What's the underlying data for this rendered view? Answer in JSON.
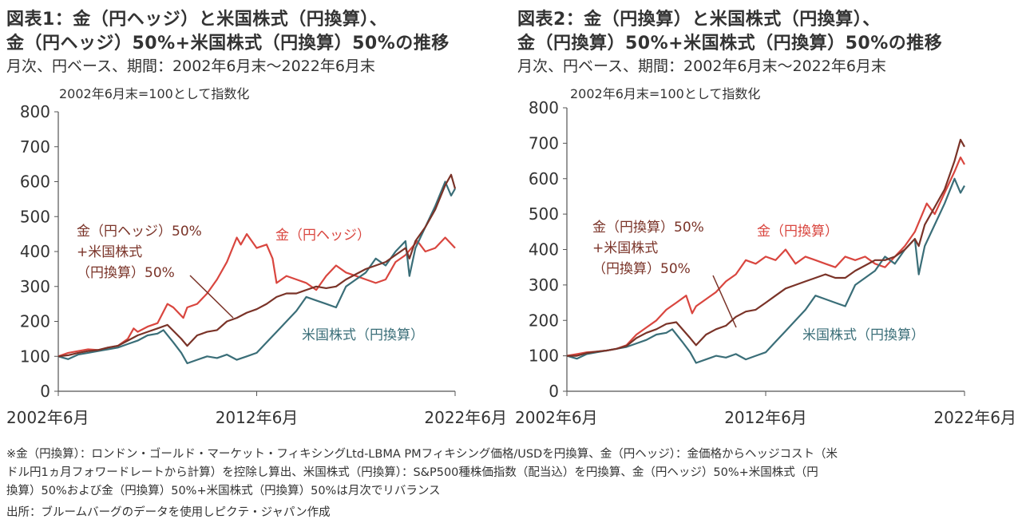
{
  "colors": {
    "gold": "#d9463f",
    "us_stock": "#3a6e78",
    "mix": "#7a3328",
    "axis": "#555555",
    "text": "#333333"
  },
  "panels": [
    {
      "title_line1": "図表1：金（円ヘッジ）と米国株式（円換算）、",
      "title_line2": "金（円ヘッジ）50%+米国株式（円換算）50%の推移",
      "subtitle": "月次、円ベース、期間：2002年6月末～2022年6月末",
      "index_note": "2002年6月末=100として指数化",
      "labels": {
        "gold": "金（円ヘッジ）",
        "us": "米国株式（円換算）",
        "mix1": "金（円ヘッジ）50%",
        "mix2": "+米国株式",
        "mix3": "（円換算）50%"
      }
    },
    {
      "title_line1": "図表2：金（円換算）と米国株式（円換算）、",
      "title_line2": "金（円換算）50%+米国株式（円換算）50%の推移",
      "subtitle": "月次、円ベース、期間：2002年6月末～2022年6月末",
      "index_note": "2002年6月末=100として指数化",
      "labels": {
        "gold": "金（円換算）",
        "us": "米国株式（円換算）",
        "mix1": "金（円換算）50%",
        "mix2": "+米国株式",
        "mix3": "（円換算）50%"
      }
    }
  ],
  "footnote": {
    "line1": "※金（円換算）：ロンドン・ゴールド・マーケット・フィキシングLtd-LBMA PMフィキシング価格/USDを円換算、金（円ヘッジ）：金価格からヘッジコスト（米",
    "line2": "ドル円1ヵ月フォワードレートから計算）を控除し算出、米国株式（円換算）：S&P500種株価指数（配当込）を円換算、金（円ヘッジ）50%+米国株式（円",
    "line3": "換算）50%および金（円換算）50%+米国株式（円換算）50%は月次でリバランス",
    "line4": "出所：ブルームバーグのデータを使用しピクテ・ジャパン作成"
  },
  "chart_data": [
    {
      "type": "line",
      "ylim": [
        0,
        800
      ],
      "yticks": [
        "0",
        "100",
        "200",
        "300",
        "400",
        "500",
        "600",
        "700",
        "800"
      ],
      "xticks": [
        "2002年6月",
        "2012年6月",
        "2022年6月"
      ],
      "xlim": [
        2002.5,
        2022.5
      ],
      "series": [
        {
          "name": "金（円ヘッジ）",
          "color": "gold",
          "x": [
            2002.5,
            2003.0,
            2003.5,
            2004.0,
            2004.5,
            2005.0,
            2005.5,
            2006.0,
            2006.3,
            2006.5,
            2007.0,
            2007.5,
            2008.0,
            2008.3,
            2008.8,
            2009.0,
            2009.5,
            2010.0,
            2010.5,
            2011.0,
            2011.5,
            2011.7,
            2012.0,
            2012.5,
            2013.0,
            2013.3,
            2013.5,
            2014.0,
            2014.5,
            2015.0,
            2015.5,
            2016.0,
            2016.5,
            2017.0,
            2017.5,
            2018.0,
            2018.5,
            2019.0,
            2019.5,
            2020.0,
            2020.6,
            2021.0,
            2021.5,
            2022.0,
            2022.5
          ],
          "y": [
            100,
            110,
            115,
            120,
            118,
            125,
            130,
            150,
            180,
            170,
            185,
            195,
            250,
            240,
            210,
            240,
            250,
            280,
            320,
            370,
            440,
            420,
            450,
            410,
            420,
            380,
            310,
            330,
            320,
            310,
            290,
            330,
            360,
            340,
            330,
            320,
            310,
            320,
            370,
            390,
            430,
            400,
            410,
            440,
            410
          ]
        },
        {
          "name": "米国株式（円換算）",
          "color": "us_stock",
          "x": [
            2002.5,
            2003.0,
            2003.5,
            2004.0,
            2004.5,
            2005.0,
            2005.5,
            2006.0,
            2006.5,
            2007.0,
            2007.5,
            2007.8,
            2008.3,
            2008.7,
            2009.0,
            2009.5,
            2010.0,
            2010.5,
            2011.0,
            2011.5,
            2012.0,
            2012.5,
            2013.0,
            2013.5,
            2014.0,
            2014.5,
            2015.0,
            2015.5,
            2016.0,
            2016.5,
            2017.0,
            2017.5,
            2018.0,
            2018.5,
            2019.0,
            2019.5,
            2020.0,
            2020.2,
            2020.5,
            2021.0,
            2021.5,
            2022.0,
            2022.3,
            2022.5
          ],
          "y": [
            100,
            92,
            105,
            110,
            115,
            120,
            125,
            135,
            145,
            160,
            165,
            175,
            140,
            110,
            80,
            90,
            100,
            95,
            105,
            90,
            100,
            110,
            140,
            170,
            200,
            230,
            270,
            260,
            250,
            240,
            300,
            320,
            340,
            380,
            360,
            400,
            430,
            330,
            410,
            470,
            530,
            600,
            560,
            580
          ]
        },
        {
          "name": "金（円ヘッジ）50%+米国株式（円換算）50%",
          "color": "mix",
          "x": [
            2002.5,
            2003.0,
            2003.5,
            2004.0,
            2004.5,
            2005.0,
            2005.5,
            2006.0,
            2006.5,
            2007.0,
            2007.5,
            2008.0,
            2008.7,
            2009.0,
            2009.5,
            2010.0,
            2010.5,
            2011.0,
            2011.5,
            2012.0,
            2012.5,
            2013.0,
            2013.5,
            2014.0,
            2014.5,
            2015.0,
            2015.5,
            2016.0,
            2016.5,
            2017.0,
            2017.5,
            2018.0,
            2018.5,
            2019.0,
            2019.5,
            2020.0,
            2020.2,
            2020.5,
            2021.0,
            2021.5,
            2022.0,
            2022.3,
            2022.5
          ],
          "y": [
            100,
            103,
            110,
            115,
            118,
            125,
            130,
            145,
            160,
            170,
            180,
            190,
            150,
            130,
            160,
            170,
            175,
            200,
            210,
            225,
            235,
            250,
            270,
            280,
            280,
            290,
            300,
            295,
            300,
            320,
            335,
            350,
            360,
            370,
            390,
            410,
            380,
            430,
            470,
            520,
            590,
            620,
            580
          ]
        }
      ]
    },
    {
      "type": "line",
      "ylim": [
        0,
        800
      ],
      "yticks": [
        "0",
        "100",
        "200",
        "300",
        "400",
        "500",
        "600",
        "700",
        "800"
      ],
      "xticks": [
        "2002年6月",
        "2012年6月",
        "2022年6月"
      ],
      "xlim": [
        2002.5,
        2022.5
      ],
      "series": [
        {
          "name": "金（円換算）",
          "color": "gold",
          "x": [
            2002.5,
            2003.0,
            2003.5,
            2004.0,
            2004.5,
            2005.0,
            2005.5,
            2006.0,
            2006.5,
            2007.0,
            2007.5,
            2008.0,
            2008.5,
            2008.8,
            2009.0,
            2009.5,
            2010.0,
            2010.5,
            2011.0,
            2011.5,
            2012.0,
            2012.5,
            2013.0,
            2013.5,
            2014.0,
            2014.5,
            2015.0,
            2015.5,
            2016.0,
            2016.5,
            2017.0,
            2017.5,
            2018.0,
            2018.5,
            2019.0,
            2019.5,
            2020.0,
            2020.6,
            2021.0,
            2021.5,
            2022.0,
            2022.3,
            2022.5
          ],
          "y": [
            100,
            105,
            110,
            112,
            115,
            120,
            130,
            160,
            180,
            200,
            230,
            250,
            270,
            220,
            240,
            260,
            280,
            310,
            330,
            370,
            360,
            380,
            370,
            400,
            360,
            380,
            370,
            360,
            350,
            380,
            370,
            380,
            360,
            350,
            380,
            410,
            450,
            530,
            500,
            560,
            620,
            660,
            640
          ]
        },
        {
          "name": "米国株式（円換算）",
          "color": "us_stock",
          "x": [
            2002.5,
            2003.0,
            2003.5,
            2004.0,
            2004.5,
            2005.0,
            2005.5,
            2006.0,
            2006.5,
            2007.0,
            2007.5,
            2007.8,
            2008.3,
            2008.7,
            2009.0,
            2009.5,
            2010.0,
            2010.5,
            2011.0,
            2011.5,
            2012.0,
            2012.5,
            2013.0,
            2013.5,
            2014.0,
            2014.5,
            2015.0,
            2015.5,
            2016.0,
            2016.5,
            2017.0,
            2017.5,
            2018.0,
            2018.5,
            2019.0,
            2019.5,
            2020.0,
            2020.2,
            2020.5,
            2021.0,
            2021.5,
            2022.0,
            2022.3,
            2022.5
          ],
          "y": [
            100,
            92,
            105,
            110,
            115,
            120,
            125,
            135,
            145,
            160,
            165,
            175,
            140,
            110,
            80,
            90,
            100,
            95,
            105,
            90,
            100,
            110,
            140,
            170,
            200,
            230,
            270,
            260,
            250,
            240,
            300,
            320,
            340,
            380,
            360,
            400,
            430,
            330,
            410,
            470,
            530,
            600,
            560,
            580
          ]
        },
        {
          "name": "金（円換算）50%+米国株式（円換算）50%",
          "color": "mix",
          "x": [
            2002.5,
            2003.0,
            2003.5,
            2004.0,
            2004.5,
            2005.0,
            2005.5,
            2006.0,
            2006.5,
            2007.0,
            2007.5,
            2008.0,
            2008.7,
            2009.0,
            2009.5,
            2010.0,
            2010.5,
            2011.0,
            2011.5,
            2012.0,
            2012.5,
            2013.0,
            2013.5,
            2014.0,
            2014.5,
            2015.0,
            2015.5,
            2016.0,
            2016.5,
            2017.0,
            2017.5,
            2018.0,
            2018.5,
            2019.0,
            2019.5,
            2020.0,
            2020.2,
            2020.5,
            2021.0,
            2021.5,
            2022.0,
            2022.3,
            2022.5
          ],
          "y": [
            100,
            100,
            108,
            112,
            115,
            120,
            128,
            150,
            165,
            175,
            190,
            195,
            150,
            130,
            160,
            175,
            185,
            210,
            225,
            230,
            250,
            270,
            290,
            300,
            310,
            320,
            330,
            320,
            320,
            340,
            355,
            370,
            370,
            380,
            400,
            430,
            410,
            470,
            520,
            570,
            650,
            710,
            690
          ]
        }
      ]
    }
  ]
}
